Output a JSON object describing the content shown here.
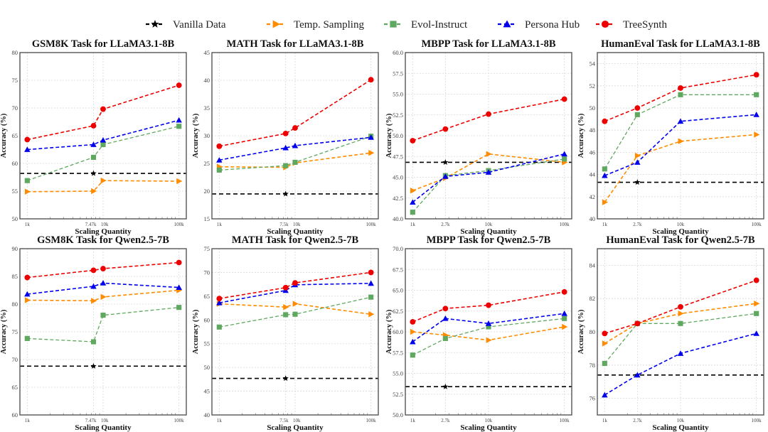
{
  "legend": [
    {
      "key": "vanilla",
      "label": "Vanilla Data",
      "color": "#000000",
      "marker": "star"
    },
    {
      "key": "temp",
      "label": "Temp. Sampling",
      "color": "#ff8c00",
      "marker": "triangle-right"
    },
    {
      "key": "evol",
      "label": "Evol-Instruct",
      "color": "#5fa85f",
      "marker": "square"
    },
    {
      "key": "persona",
      "label": "Persona Hub",
      "color": "#0000ee",
      "marker": "triangle-up"
    },
    {
      "key": "treesynth",
      "label": "TreeSynth",
      "color": "#ee0000",
      "marker": "circle"
    }
  ],
  "chart_data": [
    {
      "type": "line",
      "title": "GSM8K Task for LLaMA3.1-8B",
      "xlabel": "Scaling Quantity",
      "ylabel": "Accuracy (%)",
      "xscale": "log",
      "x": [
        1000,
        7470,
        10000,
        100000
      ],
      "xtick_values": [
        1000,
        7470,
        10000,
        100000
      ],
      "xtick_labels": [
        "1k",
        "7.47k",
        "10k",
        "100k"
      ],
      "ylim": [
        50,
        80
      ],
      "yticks": [
        50,
        55,
        60,
        65,
        70,
        75,
        80
      ],
      "ytick_labels": [
        "50",
        "55",
        "60",
        "65",
        "70",
        "75",
        "80"
      ],
      "grid": true,
      "vanilla": {
        "x": 7470,
        "y": 58.2
      },
      "series": [
        {
          "key": "temp",
          "name": "Temp. Sampling",
          "values": [
            54.9,
            55.0,
            56.9,
            56.8
          ]
        },
        {
          "key": "evol",
          "name": "Evol-Instruct",
          "values": [
            56.9,
            61.1,
            63.4,
            66.7
          ]
        },
        {
          "key": "persona",
          "name": "Persona Hub",
          "values": [
            62.5,
            63.4,
            64.2,
            67.8
          ]
        },
        {
          "key": "treesynth",
          "name": "TreeSynth",
          "values": [
            64.3,
            66.8,
            69.8,
            74.1
          ]
        }
      ]
    },
    {
      "type": "line",
      "title": "MATH Task for LLaMA3.1-8B",
      "xlabel": "Scaling Quantity",
      "ylabel": "Accuracy (%)",
      "xscale": "log",
      "x": [
        1000,
        7500,
        10000,
        100000
      ],
      "xtick_values": [
        1000,
        7500,
        10000,
        100000
      ],
      "xtick_labels": [
        "1k",
        "7.5k",
        "10k",
        "100k"
      ],
      "ylim": [
        15,
        45
      ],
      "yticks": [
        15,
        20,
        25,
        30,
        35,
        40,
        45
      ],
      "ytick_labels": [
        "15",
        "20",
        "25",
        "30",
        "35",
        "40",
        "45"
      ],
      "grid": true,
      "vanilla": {
        "x": 7500,
        "y": 19.5
      },
      "series": [
        {
          "key": "temp",
          "name": "Temp. Sampling",
          "values": [
            24.4,
            24.3,
            25.1,
            26.9
          ]
        },
        {
          "key": "evol",
          "name": "Evol-Instruct",
          "values": [
            23.8,
            24.6,
            25.2,
            29.9
          ]
        },
        {
          "key": "persona",
          "name": "Persona Hub",
          "values": [
            25.6,
            27.8,
            28.2,
            29.7
          ]
        },
        {
          "key": "treesynth",
          "name": "TreeSynth",
          "values": [
            28.1,
            30.4,
            31.4,
            40.1
          ]
        }
      ]
    },
    {
      "type": "line",
      "title": "MBPP Task for LLaMA3.1-8B",
      "xlabel": "Scaling Quantity",
      "ylabel": "Accuracy (%)",
      "xscale": "log",
      "x": [
        1000,
        2700,
        10000,
        100000
      ],
      "xtick_values": [
        1000,
        2700,
        10000,
        100000
      ],
      "xtick_labels": [
        "1k",
        "2.7k",
        "10k",
        "100k"
      ],
      "ylim": [
        40,
        60
      ],
      "yticks": [
        40,
        42.5,
        45,
        47.5,
        50,
        52.5,
        55,
        57.5,
        60
      ],
      "ytick_labels": [
        "40.0",
        "42.5",
        "45.0",
        "47.5",
        "50.0",
        "52.5",
        "55.0",
        "57.5",
        "60.0"
      ],
      "grid": true,
      "vanilla": {
        "x": 2700,
        "y": 46.8
      },
      "series": [
        {
          "key": "temp",
          "name": "Temp. Sampling",
          "values": [
            43.4,
            44.9,
            47.8,
            46.8
          ]
        },
        {
          "key": "evol",
          "name": "Evol-Instruct",
          "values": [
            40.8,
            45.2,
            45.8,
            47.2
          ]
        },
        {
          "key": "persona",
          "name": "Persona Hub",
          "values": [
            42.0,
            45.1,
            45.6,
            47.8
          ]
        },
        {
          "key": "treesynth",
          "name": "TreeSynth",
          "values": [
            49.4,
            50.8,
            52.6,
            54.4
          ]
        }
      ]
    },
    {
      "type": "line",
      "title": "HumanEval Task for LLaMA3.1-8B",
      "xlabel": "Scaling Quantity",
      "ylabel": "Accuracy (%)",
      "xscale": "log",
      "x": [
        1000,
        2700,
        10000,
        100000
      ],
      "xtick_values": [
        1000,
        2700,
        10000,
        100000
      ],
      "xtick_labels": [
        "1k",
        "2.7k",
        "10k",
        "100k"
      ],
      "ylim": [
        40,
        55
      ],
      "yticks": [
        40,
        42,
        44,
        46,
        48,
        50,
        52,
        54
      ],
      "ytick_labels": [
        "40",
        "42",
        "44",
        "46",
        "48",
        "50",
        "52",
        "54"
      ],
      "grid": true,
      "vanilla": {
        "x": 2700,
        "y": 43.3
      },
      "series": [
        {
          "key": "temp",
          "name": "Temp. Sampling",
          "values": [
            41.5,
            45.7,
            47.0,
            47.6
          ]
        },
        {
          "key": "evol",
          "name": "Evol-Instruct",
          "values": [
            44.5,
            49.4,
            51.2,
            51.2
          ]
        },
        {
          "key": "persona",
          "name": "Persona Hub",
          "values": [
            43.9,
            45.1,
            48.8,
            49.4
          ]
        },
        {
          "key": "treesynth",
          "name": "TreeSynth",
          "values": [
            48.8,
            50.0,
            51.8,
            53.0
          ]
        }
      ]
    },
    {
      "type": "line",
      "title": "GSM8K Task for Qwen2.5-7B",
      "xlabel": "Scaling Quantity",
      "ylabel": "Accuracy (%)",
      "xscale": "log",
      "x": [
        1000,
        7470,
        10000,
        100000
      ],
      "xtick_values": [
        1000,
        7470,
        10000,
        100000
      ],
      "xtick_labels": [
        "1k",
        "7.47k",
        "10k",
        "100k"
      ],
      "ylim": [
        60,
        90
      ],
      "yticks": [
        60,
        65,
        70,
        75,
        80,
        85,
        90
      ],
      "ytick_labels": [
        "60",
        "65",
        "70",
        "75",
        "80",
        "85",
        "90"
      ],
      "grid": true,
      "vanilla": {
        "x": 7470,
        "y": 68.8
      },
      "series": [
        {
          "key": "temp",
          "name": "Temp. Sampling",
          "values": [
            80.7,
            80.6,
            81.3,
            82.5
          ]
        },
        {
          "key": "evol",
          "name": "Evol-Instruct",
          "values": [
            73.8,
            73.2,
            78.0,
            79.4
          ]
        },
        {
          "key": "persona",
          "name": "Persona Hub",
          "values": [
            81.8,
            83.2,
            83.8,
            83.0
          ]
        },
        {
          "key": "treesynth",
          "name": "TreeSynth",
          "values": [
            84.8,
            86.1,
            86.4,
            87.5
          ]
        }
      ]
    },
    {
      "type": "line",
      "title": "MATH Task for Qwen2.5-7B",
      "xlabel": "Scaling Quantity",
      "ylabel": "Accuracy (%)",
      "xscale": "log",
      "x": [
        1000,
        7500,
        10000,
        100000
      ],
      "xtick_values": [
        1000,
        7500,
        10000,
        100000
      ],
      "xtick_labels": [
        "1k",
        "7.5k",
        "10k",
        "100k"
      ],
      "ylim": [
        40,
        75
      ],
      "yticks": [
        40,
        45,
        50,
        55,
        60,
        65,
        70,
        75
      ],
      "ytick_labels": [
        "40",
        "45",
        "50",
        "55",
        "60",
        "65",
        "70",
        "75"
      ],
      "grid": true,
      "vanilla": {
        "x": 7500,
        "y": 47.7
      },
      "series": [
        {
          "key": "temp",
          "name": "Temp. Sampling",
          "values": [
            63.4,
            62.7,
            63.4,
            61.2
          ]
        },
        {
          "key": "evol",
          "name": "Evol-Instruct",
          "values": [
            58.5,
            61.1,
            61.2,
            64.8
          ]
        },
        {
          "key": "persona",
          "name": "Persona Hub",
          "values": [
            63.6,
            66.2,
            67.4,
            67.7
          ]
        },
        {
          "key": "treesynth",
          "name": "TreeSynth",
          "values": [
            64.5,
            66.8,
            67.8,
            70.0
          ]
        }
      ]
    },
    {
      "type": "line",
      "title": "MBPP Task for Qwen2.5-7B",
      "xlabel": "Scaling Quantity",
      "ylabel": "Accuracy (%)",
      "xscale": "log",
      "x": [
        1000,
        2700,
        10000,
        100000
      ],
      "xtick_values": [
        1000,
        2700,
        10000,
        100000
      ],
      "xtick_labels": [
        "1k",
        "2.7k",
        "10k",
        "100k"
      ],
      "ylim": [
        50,
        70
      ],
      "yticks": [
        50,
        52.5,
        55,
        57.5,
        60,
        62.5,
        65,
        67.5,
        70
      ],
      "ytick_labels": [
        "50.0",
        "52.5",
        "55.0",
        "57.5",
        "60.0",
        "62.5",
        "65.0",
        "67.5",
        "70.0"
      ],
      "grid": true,
      "vanilla": {
        "x": 2700,
        "y": 53.4
      },
      "series": [
        {
          "key": "temp",
          "name": "Temp. Sampling",
          "values": [
            60.0,
            59.6,
            59.0,
            60.6
          ]
        },
        {
          "key": "evol",
          "name": "Evol-Instruct",
          "values": [
            57.2,
            59.2,
            60.6,
            61.6
          ]
        },
        {
          "key": "persona",
          "name": "Persona Hub",
          "values": [
            58.8,
            61.6,
            61.0,
            62.2
          ]
        },
        {
          "key": "treesynth",
          "name": "TreeSynth",
          "values": [
            61.2,
            62.8,
            63.2,
            64.8
          ]
        }
      ]
    },
    {
      "type": "line",
      "title": "HumanEval Task for Qwen2.5-7B",
      "xlabel": "Scaling Quantity",
      "ylabel": "Accuracy (%)",
      "xscale": "log",
      "x": [
        1000,
        2700,
        10000,
        100000
      ],
      "xtick_values": [
        1000,
        2700,
        10000,
        100000
      ],
      "xtick_labels": [
        "1k",
        "2.7k",
        "10k",
        "100k"
      ],
      "ylim": [
        75,
        85
      ],
      "yticks": [
        76,
        78,
        80,
        82,
        84
      ],
      "ytick_labels": [
        "76",
        "78",
        "80",
        "82",
        "84"
      ],
      "grid": true,
      "vanilla": {
        "x": 2700,
        "y": 77.4
      },
      "series": [
        {
          "key": "temp",
          "name": "Temp. Sampling",
          "values": [
            79.3,
            80.5,
            81.1,
            81.7
          ]
        },
        {
          "key": "evol",
          "name": "Evol-Instruct",
          "values": [
            78.1,
            80.5,
            80.5,
            81.1
          ]
        },
        {
          "key": "persona",
          "name": "Persona Hub",
          "values": [
            76.2,
            77.4,
            78.7,
            79.9
          ]
        },
        {
          "key": "treesynth",
          "name": "TreeSynth",
          "values": [
            79.9,
            80.5,
            81.5,
            83.1
          ]
        }
      ]
    }
  ]
}
